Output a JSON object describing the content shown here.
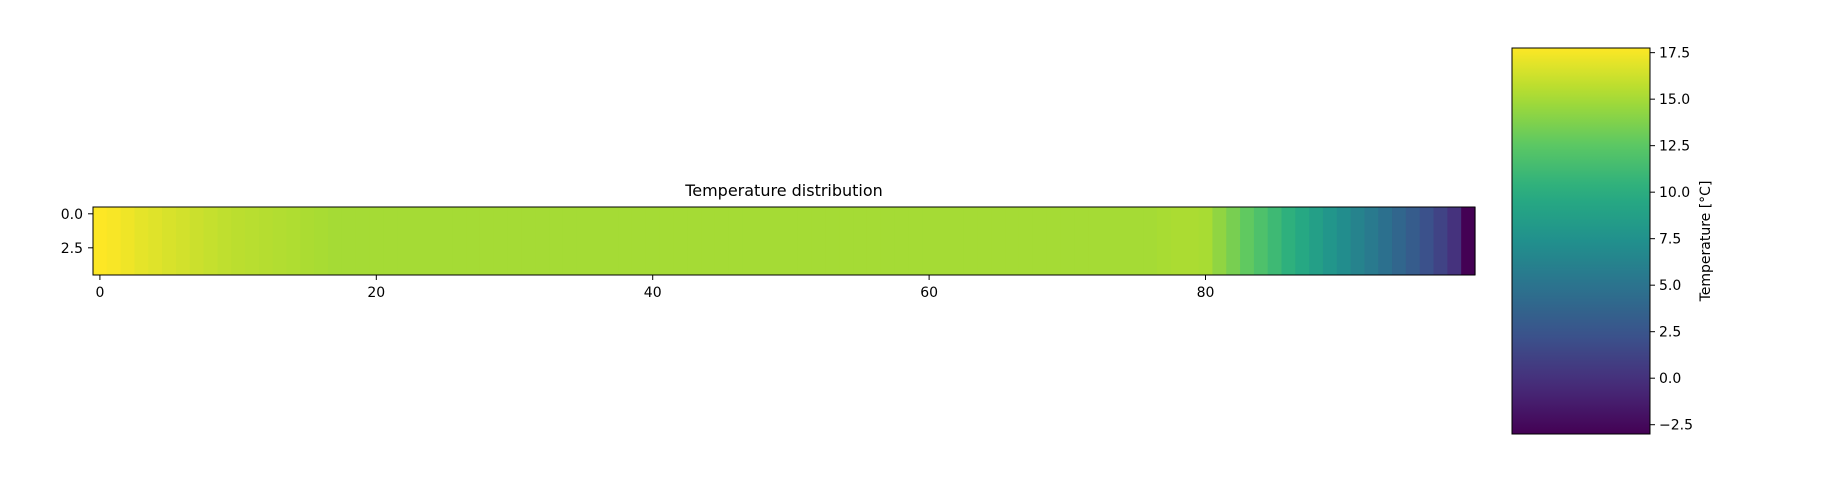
{
  "chart_data": {
    "type": "heatmap",
    "title": "Temperature distribution",
    "xlabel": "",
    "ylabel": "",
    "rows": 5,
    "columns": 100,
    "xlim": [
      -0.5,
      99.5
    ],
    "ylim": [
      4.5,
      -0.5
    ],
    "x_ticks": [
      {
        "value": 0,
        "label": "0"
      },
      {
        "value": 20,
        "label": "20"
      },
      {
        "value": 40,
        "label": "40"
      },
      {
        "value": 60,
        "label": "60"
      },
      {
        "value": 80,
        "label": "80"
      }
    ],
    "y_ticks": [
      {
        "value": 0,
        "label": "0.0"
      },
      {
        "value": 2.5,
        "label": "2.5"
      }
    ],
    "values": [
      17.9,
      17.6,
      17.3,
      17.0,
      16.8,
      16.6,
      16.4,
      16.2,
      16.0,
      15.8,
      15.7,
      15.6,
      15.5,
      15.4,
      15.3,
      15.2,
      15.1,
      15.0,
      15.0,
      15.0,
      15.0,
      15.0,
      15.0,
      15.0,
      15.0,
      15.0,
      15.0,
      15.0,
      15.0,
      15.0,
      15.0,
      15.0,
      15.0,
      15.0,
      15.0,
      15.0,
      15.0,
      15.0,
      15.0,
      15.0,
      15.0,
      15.0,
      15.0,
      15.0,
      15.0,
      15.0,
      15.0,
      15.0,
      15.0,
      15.0,
      15.0,
      15.0,
      15.0,
      15.0,
      15.0,
      15.0,
      15.0,
      15.0,
      15.0,
      15.0,
      15.0,
      15.0,
      15.0,
      15.0,
      15.0,
      15.0,
      15.0,
      15.0,
      15.0,
      15.0,
      15.0,
      15.0,
      15.0,
      15.0,
      15.0,
      15.0,
      15.0,
      15.1,
      15.2,
      15.2,
      15.1,
      14.3,
      13.5,
      12.7,
      11.9,
      11.1,
      10.3,
      9.5,
      8.7,
      7.9,
      7.1,
      6.3,
      5.5,
      4.7,
      3.9,
      3.1,
      2.2,
      1.2,
      0.0,
      -3.0
    ],
    "colorbar": {
      "label": "Temperature [°C]",
      "colormap": "viridis",
      "min": -3.0,
      "max": 17.75,
      "ticks": [
        {
          "value": -2.5,
          "label": "−2.5"
        },
        {
          "value": 0.0,
          "label": "0.0"
        },
        {
          "value": 2.5,
          "label": "2.5"
        },
        {
          "value": 5.0,
          "label": "5.0"
        },
        {
          "value": 7.5,
          "label": "7.5"
        },
        {
          "value": 10.0,
          "label": "10.0"
        },
        {
          "value": 12.5,
          "label": "12.5"
        },
        {
          "value": 15.0,
          "label": "15.0"
        },
        {
          "value": 17.5,
          "label": "17.5"
        }
      ]
    },
    "grid": false,
    "legend": "none"
  }
}
